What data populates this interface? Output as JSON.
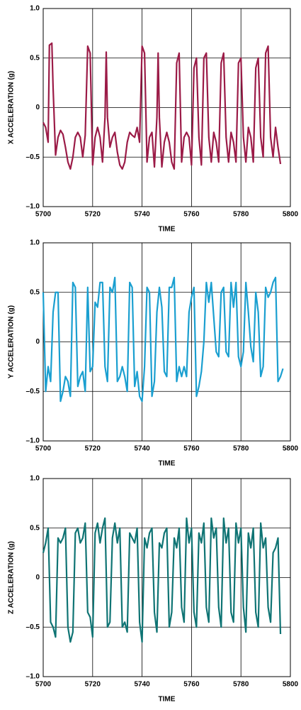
{
  "chart_data": [
    {
      "type": "line",
      "x_label": "TIME",
      "y_label": "X ACCELERATION (g)",
      "grid": true,
      "xlim": [
        5700,
        5800
      ],
      "xticks": [
        5700,
        5720,
        5740,
        5760,
        5780,
        5800
      ],
      "ylim": [
        -1,
        1
      ],
      "yticks": [
        {
          "value": -1,
          "label": "–1.0"
        },
        {
          "value": -0.5,
          "label": "–0.5"
        },
        0,
        0.5,
        {
          "value": 1,
          "label": "1.0"
        }
      ],
      "x": [
        5700,
        5701,
        5702,
        5702.5,
        5703.5,
        5704,
        5705,
        5706,
        5707,
        5708,
        5709,
        5710,
        5711,
        5712,
        5713,
        5714,
        5715,
        5716,
        5717,
        5718,
        5719,
        5720,
        5721,
        5722,
        5723,
        5724,
        5725,
        5725.5,
        5726,
        5727,
        5728,
        5729,
        5730,
        5731,
        5732,
        5733,
        5734,
        5735,
        5736,
        5737,
        5738,
        5739,
        5740,
        5741,
        5742,
        5743,
        5744,
        5745,
        5746,
        5746.5,
        5747,
        5748,
        5749,
        5750,
        5751,
        5752,
        5753,
        5754,
        5755,
        5756,
        5757,
        5758,
        5759,
        5760,
        5761,
        5762,
        5763,
        5764,
        5765,
        5766,
        5767,
        5768,
        5769,
        5770,
        5771,
        5772,
        5773,
        5774,
        5775,
        5776,
        5777,
        5778,
        5779,
        5780,
        5781,
        5782,
        5783,
        5784,
        5785,
        5786,
        5787,
        5788,
        5789,
        5790,
        5791,
        5792,
        5793,
        5794,
        5795,
        5796
      ],
      "series": [
        {
          "color": "#9b1b47",
          "values": [
            -0.15,
            -0.2,
            -0.35,
            0.63,
            0.65,
            0.2,
            -0.48,
            -0.3,
            -0.23,
            -0.27,
            -0.4,
            -0.55,
            -0.62,
            -0.5,
            -0.3,
            -0.25,
            -0.3,
            -0.5,
            -0.28,
            0.62,
            0.55,
            -0.58,
            -0.3,
            -0.2,
            -0.3,
            -0.55,
            -0.1,
            0.56,
            -0.1,
            -0.4,
            -0.3,
            -0.25,
            -0.45,
            -0.58,
            -0.62,
            -0.55,
            -0.35,
            -0.25,
            -0.28,
            -0.3,
            -0.2,
            -0.35,
            0.62,
            0.55,
            -0.55,
            -0.3,
            -0.25,
            -0.6,
            -0.1,
            0.55,
            -0.1,
            -0.6,
            -0.35,
            -0.25,
            -0.35,
            -0.55,
            -0.62,
            0.45,
            0.55,
            -0.55,
            -0.3,
            -0.25,
            -0.3,
            -0.58,
            0.4,
            0.5,
            -0.3,
            -0.58,
            0.5,
            0.55,
            -0.3,
            -0.55,
            -0.25,
            -0.35,
            -0.55,
            0.45,
            0.55,
            -0.3,
            -0.55,
            -0.25,
            -0.35,
            -0.55,
            0.45,
            0.5,
            -0.3,
            -0.55,
            -0.2,
            -0.3,
            -0.55,
            0.4,
            0.5,
            -0.3,
            -0.5,
            0.55,
            0.62,
            -0.3,
            -0.5,
            -0.2,
            -0.4,
            -0.57
          ]
        }
      ]
    },
    {
      "type": "line",
      "x_label": "TIME",
      "y_label": "Y ACCELERATION (g)",
      "grid": true,
      "xlim": [
        5700,
        5800
      ],
      "xticks": [
        5700,
        5720,
        5740,
        5760,
        5780,
        5800
      ],
      "ylim": [
        -1,
        1
      ],
      "yticks": [
        {
          "value": -1,
          "label": "–1.0"
        },
        {
          "value": -0.5,
          "label": "–0.5"
        },
        0,
        0.5,
        {
          "value": 1,
          "label": "1.0"
        }
      ],
      "x": [
        5700,
        5701,
        5702,
        5703,
        5704,
        5705,
        5706,
        5707,
        5708,
        5709,
        5710,
        5711,
        5712,
        5713,
        5714,
        5715,
        5716,
        5717,
        5718,
        5719,
        5720,
        5721,
        5722,
        5723,
        5724,
        5725,
        5726,
        5727,
        5728,
        5729,
        5730,
        5731,
        5732,
        5733,
        5734,
        5735,
        5736,
        5737,
        5738,
        5739,
        5740,
        5741,
        5742,
        5743,
        5744,
        5745,
        5746,
        5747,
        5748,
        5749,
        5750,
        5751,
        5752,
        5753,
        5754,
        5755,
        5756,
        5757,
        5758,
        5759,
        5760,
        5761,
        5762,
        5763,
        5764,
        5765,
        5766,
        5767,
        5768,
        5769,
        5770,
        5771,
        5772,
        5773,
        5774,
        5775,
        5776,
        5777,
        5778,
        5779,
        5780,
        5781,
        5782,
        5783,
        5784,
        5785,
        5786,
        5787,
        5788,
        5789,
        5790,
        5791,
        5792,
        5793,
        5794,
        5795,
        5796,
        5797
      ],
      "series": [
        {
          "color": "#1a9fd0",
          "values": [
            0.5,
            -0.5,
            -0.25,
            -0.4,
            0.3,
            0.5,
            0.5,
            -0.6,
            -0.5,
            -0.35,
            -0.4,
            -0.55,
            0.6,
            0.55,
            -0.45,
            -0.35,
            -0.3,
            -0.5,
            0.55,
            -0.3,
            -0.25,
            0.4,
            0.35,
            0.6,
            0.6,
            -0.25,
            -0.4,
            0.55,
            0.5,
            0.65,
            -0.4,
            -0.35,
            -0.25,
            -0.35,
            -0.5,
            0.6,
            0.55,
            -0.45,
            -0.3,
            -0.55,
            -0.6,
            -0.25,
            0.55,
            0.5,
            -0.55,
            -0.4,
            0.3,
            0.55,
            0.35,
            -0.3,
            -0.35,
            0.55,
            0.55,
            0.65,
            -0.4,
            -0.25,
            -0.35,
            -0.25,
            -0.35,
            0.3,
            0.45,
            0.55,
            -0.55,
            -0.45,
            -0.3,
            0,
            0.6,
            0.4,
            0.6,
            0.25,
            -0.1,
            -0.15,
            0.5,
            0.55,
            -0.1,
            -0.15,
            0.6,
            0.35,
            0.6,
            -0.15,
            -0.25,
            -0.1,
            0.6,
            0.3,
            -0.05,
            -0.2,
            0.5,
            0.3,
            -0.35,
            -0.25,
            0.55,
            0.45,
            0.5,
            0.6,
            0.65,
            -0.4,
            -0.35,
            -0.27
          ]
        }
      ]
    },
    {
      "type": "line",
      "x_label": "TIME",
      "y_label": "Z ACCELERATION (g)",
      "grid": true,
      "xlim": [
        5700,
        5800
      ],
      "xticks": [
        5700,
        5720,
        5740,
        5760,
        5780,
        5800
      ],
      "ylim": [
        -1,
        1
      ],
      "yticks": [
        {
          "value": -1,
          "label": "–1.0"
        },
        {
          "value": -0.5,
          "label": "–0.5"
        },
        0,
        0.5,
        {
          "value": 1,
          "label": "1.0"
        }
      ],
      "x": [
        5700,
        5701,
        5702,
        5703,
        5704,
        5705,
        5706,
        5707,
        5708,
        5709,
        5710,
        5711,
        5712,
        5713,
        5714,
        5715,
        5716,
        5717,
        5718,
        5719,
        5720,
        5721,
        5722,
        5723,
        5724,
        5725,
        5726,
        5727,
        5728,
        5729,
        5730,
        5731,
        5732,
        5733,
        5734,
        5735,
        5736,
        5737,
        5738,
        5739,
        5740,
        5741,
        5742,
        5743,
        5744,
        5745,
        5746,
        5747,
        5748,
        5749,
        5750,
        5751,
        5752,
        5753,
        5754,
        5755,
        5756,
        5757,
        5758,
        5759,
        5760,
        5761,
        5762,
        5763,
        5764,
        5765,
        5766,
        5767,
        5768,
        5769,
        5770,
        5771,
        5772,
        5773,
        5774,
        5775,
        5776,
        5777,
        5778,
        5779,
        5780,
        5781,
        5782,
        5783,
        5784,
        5785,
        5786,
        5787,
        5788,
        5789,
        5790,
        5791,
        5792,
        5793,
        5794,
        5795,
        5796
      ],
      "series": [
        {
          "color": "#0f7474",
          "values": [
            0.25,
            0.35,
            0.5,
            -0.45,
            -0.5,
            -0.6,
            0.4,
            0.35,
            0.4,
            0.5,
            -0.5,
            -0.65,
            -0.55,
            0.45,
            0.5,
            0.35,
            0.4,
            0.55,
            -0.35,
            -0.4,
            -0.6,
            0.45,
            0.55,
            0.35,
            0.5,
            0.6,
            -0.5,
            -0.45,
            0.4,
            0.55,
            0.35,
            0.5,
            -0.5,
            -0.45,
            -0.55,
            0.45,
            0.4,
            0.35,
            0.5,
            -0.45,
            -0.65,
            0.4,
            0.3,
            0.45,
            0.5,
            -0.35,
            -0.55,
            0.35,
            0.3,
            0.45,
            0.5,
            -0.5,
            -0.35,
            0.4,
            0.3,
            0.5,
            -0.3,
            -0.45,
            0.6,
            0.35,
            0.5,
            -0.35,
            -0.5,
            0.45,
            0.35,
            0.55,
            -0.3,
            -0.45,
            0.6,
            0.4,
            0.5,
            -0.3,
            -0.5,
            0.6,
            0.35,
            0.5,
            -0.35,
            -0.45,
            0.55,
            0.35,
            0.5,
            -0.3,
            -0.55,
            0.45,
            0.3,
            0.5,
            -0.35,
            -0.5,
            0.55,
            0.3,
            0.4,
            -0.3,
            -0.45,
            0.25,
            0.3,
            0.4,
            -0.57
          ]
        }
      ]
    }
  ]
}
